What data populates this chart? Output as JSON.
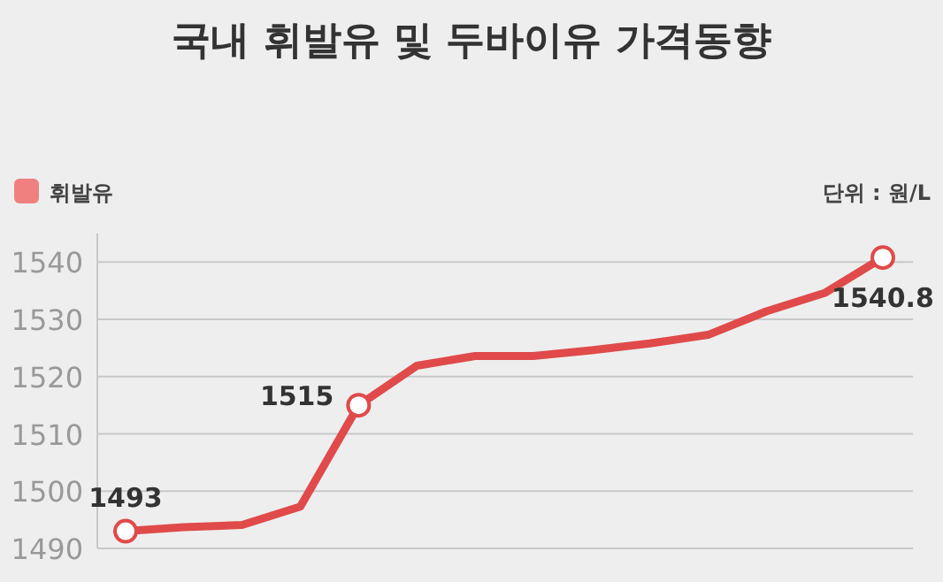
{
  "chart_data": {
    "type": "line",
    "title": "국내 휘발유 및 두바이유 가격동향",
    "annotations": [
      "단위 : 원/L"
    ],
    "categories": [
      null,
      null,
      null,
      null,
      null,
      null,
      null,
      null,
      null,
      null,
      null,
      null,
      null,
      null
    ],
    "series": [
      {
        "name": "휘발유",
        "color": "#e04a4a",
        "values": [
          1493,
          1493.7,
          1494.1,
          1497.3,
          1515,
          1521.9,
          1523.6,
          1523.6,
          1524.6,
          1525.8,
          1527.3,
          1531.4,
          1534.6,
          1540.8
        ],
        "value_labels": [
          "1493",
          null,
          null,
          null,
          "1515",
          null,
          null,
          null,
          null,
          null,
          null,
          null,
          null,
          "1540.8"
        ]
      }
    ],
    "ylim": [
      1490,
      1545
    ],
    "yticks": [
      1490,
      1500,
      1510,
      1520,
      1530,
      1540
    ],
    "grid": "y",
    "legend": "top left"
  }
}
